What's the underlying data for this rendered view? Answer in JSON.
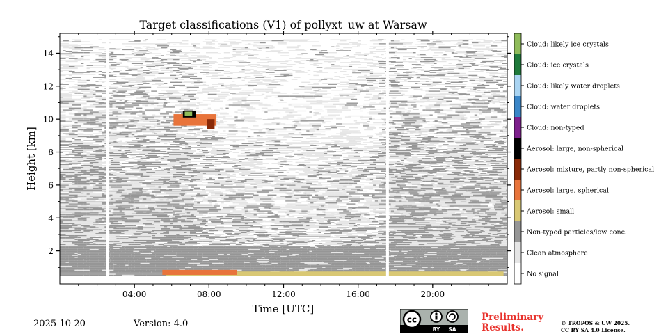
{
  "chart_data": {
    "type": "heatmap",
    "title": "Target classifications (V1) of pollyxt_uw at Warsaw",
    "xlabel": "Time [UTC]",
    "ylabel": "Height [km]",
    "xlim": [
      0,
      24
    ],
    "ylim": [
      0,
      15.2
    ],
    "data_height_range_km": [
      0.5,
      14.8
    ],
    "x_ticks": [
      {
        "value": 4,
        "label": "04:00"
      },
      {
        "value": 8,
        "label": "08:00"
      },
      {
        "value": 12,
        "label": "12:00"
      },
      {
        "value": 16,
        "label": "16:00"
      },
      {
        "value": 20,
        "label": "20:00"
      }
    ],
    "y_ticks": [
      {
        "value": 2,
        "label": "2"
      },
      {
        "value": 4,
        "label": "4"
      },
      {
        "value": 6,
        "label": "6"
      },
      {
        "value": 8,
        "label": "8"
      },
      {
        "value": 10,
        "label": "10"
      },
      {
        "value": 12,
        "label": "12"
      },
      {
        "value": 14,
        "label": "14"
      }
    ],
    "no_data_gaps_hours": [
      [
        2.5,
        2.65
      ],
      [
        17.5,
        17.65
      ]
    ],
    "classes": [
      {
        "label": "Cloud: likely ice crystals",
        "color": "#8fbc5a"
      },
      {
        "label": "Cloud: ice crystals",
        "color": "#1f7a3b"
      },
      {
        "label": "Cloud: likely water droplets",
        "color": "#a9d4f2"
      },
      {
        "label": "Cloud: water droplets",
        "color": "#3a86c8"
      },
      {
        "label": "Cloud: non-typed",
        "color": "#7d1f8c"
      },
      {
        "label": "Aerosol: large, non-spherical",
        "color": "#000000"
      },
      {
        "label": "Aerosol: mixture, partly non-spherical",
        "color": "#8a2a08"
      },
      {
        "label": "Aerosol: large, spherical",
        "color": "#e8743b"
      },
      {
        "label": "Aerosol: small",
        "color": "#d9c874"
      },
      {
        "label": "Non-typed particles/low conc.",
        "color": "#969696"
      },
      {
        "label": "Clean atmosphere",
        "color": "#e5e5e5"
      },
      {
        "label": "No signal",
        "color": "#ffffff"
      }
    ],
    "features": [
      {
        "class": "Aerosol: small",
        "time_range": [
          5.7,
          23.8
        ],
        "height_range_km": [
          0.5,
          0.75
        ]
      },
      {
        "class": "Aerosol: large, spherical",
        "time_range": [
          5.5,
          9.5
        ],
        "height_range_km": [
          0.55,
          0.85
        ]
      },
      {
        "class": "Aerosol: large, spherical",
        "time_range": [
          6.1,
          8.4
        ],
        "height_range_km": [
          9.6,
          10.3
        ]
      },
      {
        "class": "Aerosol: mixture, partly non-spherical",
        "time_range": [
          7.9,
          8.3
        ],
        "height_range_km": [
          9.4,
          10.0
        ]
      },
      {
        "class": "Aerosol: large, non-spherical",
        "time_range": [
          6.6,
          7.3
        ],
        "height_range_km": [
          10.1,
          10.5
        ]
      },
      {
        "class": "Cloud: likely ice crystals",
        "time_range": [
          6.7,
          7.1
        ],
        "height_range_km": [
          10.2,
          10.45
        ]
      },
      {
        "class": "Non-typed particles/low conc.",
        "time_range": [
          0,
          24
        ],
        "height_range_km": [
          0.5,
          2.3
        ]
      }
    ]
  },
  "footer": {
    "date": "2025-10-20",
    "version": "Version: 4.0",
    "preliminary_line1": "Preliminary",
    "preliminary_line2": "Results.",
    "copyright_line1": "© TROPOS & UW 2025.",
    "copyright_line2": "CC BY SA 4.0 License."
  },
  "cc_badge": {
    "cc": "cc",
    "by": "BY",
    "sa": "SA"
  },
  "colors": {
    "axis": "#000000",
    "prelim": "#e8322c"
  }
}
